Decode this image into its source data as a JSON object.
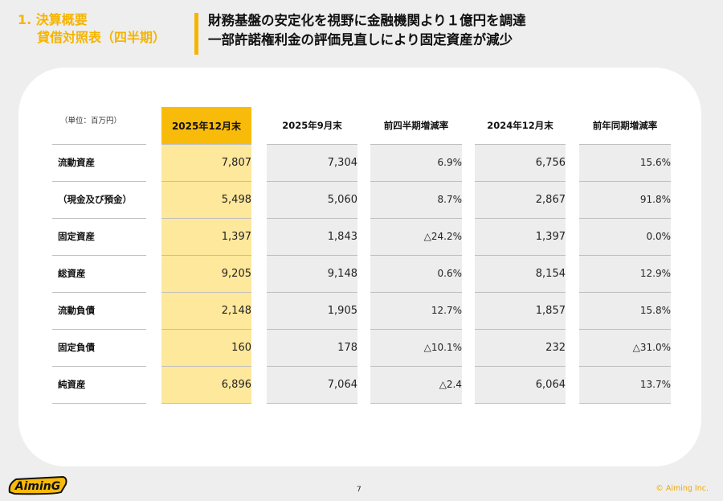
{
  "section": {
    "line1": "1. 決算概要",
    "line2": "貸借対照表（四半期）"
  },
  "headline": {
    "line1": "財務基盤の安定化を視野に金融機関より１億円を調達",
    "line2": "一部許諾権利金の評価見直しにより固定資産が減少"
  },
  "table": {
    "unit_label": "（単位：百万円）",
    "columns": [
      "2025年12月末",
      "2025年9月末",
      "前四半期増減率",
      "2024年12月末",
      "前年同期増減率"
    ],
    "rows": [
      {
        "label": "流動資産",
        "values": [
          "7,807",
          "7,304",
          "6.9%",
          "6,756",
          "15.6%"
        ]
      },
      {
        "label": "（現金及び預金）",
        "values": [
          "5,498",
          "5,060",
          "8.7%",
          "2,867",
          "91.8%"
        ]
      },
      {
        "label": "固定資産",
        "values": [
          "1,397",
          "1,843",
          "△24.2%",
          "1,397",
          "0.0%"
        ]
      },
      {
        "label": "総資産",
        "values": [
          "9,205",
          "9,148",
          "0.6%",
          "8,154",
          "12.9%"
        ]
      },
      {
        "label": "流動負債",
        "values": [
          "2,148",
          "1,905",
          "12.7%",
          "1,857",
          "15.8%"
        ]
      },
      {
        "label": "固定負債",
        "values": [
          "160",
          "178",
          "△10.1%",
          "232",
          "△31.0%"
        ]
      },
      {
        "label": "純資産",
        "values": [
          "6,896",
          "7,064",
          "△2.4",
          "6,064",
          "13.7%"
        ]
      }
    ],
    "highlight_color": "#f8bb0a"
  },
  "footer": {
    "logo_text": "AiminG",
    "page_number": "7",
    "copyright": "© Aiming Inc."
  },
  "colors": {
    "accent": "#f5b400",
    "highlight_light": "#fde89c",
    "background": "#eeeeee"
  }
}
